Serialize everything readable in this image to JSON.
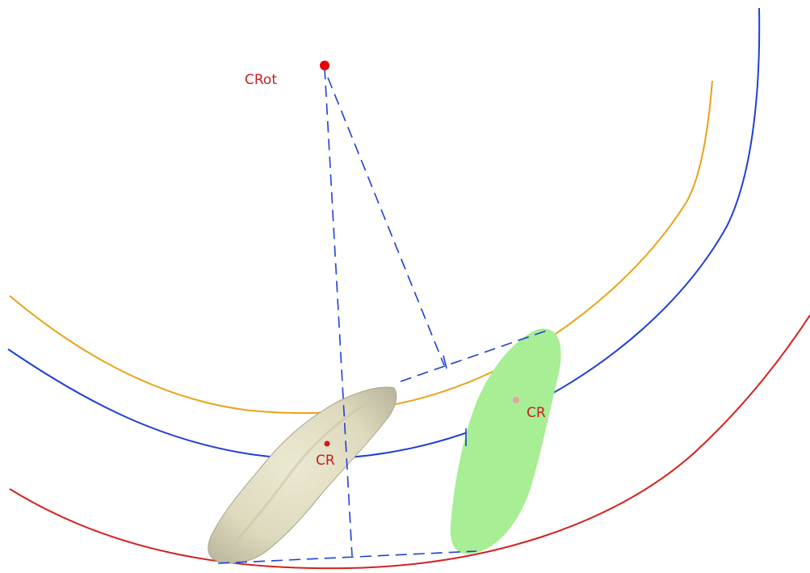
{
  "labels": {
    "center_of_rotation": "CRot",
    "cr_original": "CR",
    "cr_moved": "CR"
  },
  "colors": {
    "background": "#ffffff",
    "arc_outer": "#d62020",
    "arc_middle": "#1f3fd6",
    "arc_inner": "#e8a317",
    "dashed_lines": "#1f3fd6",
    "label_text": "#c42020",
    "crot_point": "#e80000",
    "tooth_fill": "#ddd9bd",
    "tooth_shade": "#b9b49a",
    "moved_tooth_fill": "#a8ee94",
    "cr_point_original": "#d41818",
    "cr_point_moved": "#e7a0b0"
  }
}
